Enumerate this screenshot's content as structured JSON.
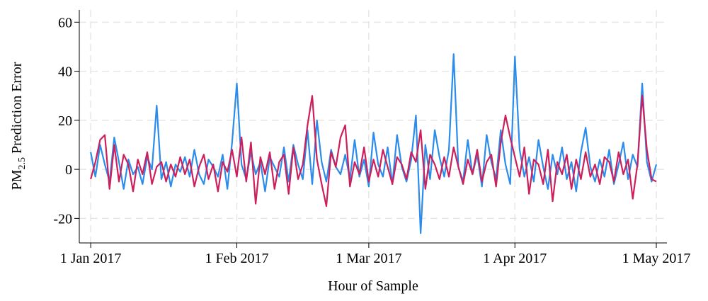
{
  "chart_data": {
    "type": "line",
    "x_label": "Hour of Sample",
    "y_label": [
      "PM",
      "2.5",
      " Prediction Error"
    ],
    "xlim": [
      -58,
      2934
    ],
    "ylim": [
      -30,
      65
    ],
    "xticks": [
      {
        "value": 0,
        "label": "1 Jan 2017"
      },
      {
        "value": 744,
        "label": "1 Feb 2017"
      },
      {
        "value": 1416,
        "label": "1 Mar 2017"
      },
      {
        "value": 2160,
        "label": "1 Apr 2017"
      },
      {
        "value": 2880,
        "label": "1 May 2017"
      }
    ],
    "yticks": [
      -20,
      0,
      20,
      40,
      60
    ],
    "grid": true,
    "x": [
      0,
      24,
      48,
      72,
      96,
      120,
      144,
      168,
      192,
      216,
      240,
      264,
      288,
      312,
      336,
      360,
      384,
      408,
      432,
      456,
      480,
      504,
      528,
      552,
      576,
      600,
      624,
      648,
      672,
      696,
      720,
      744,
      768,
      792,
      816,
      840,
      864,
      888,
      912,
      936,
      960,
      984,
      1008,
      1032,
      1056,
      1080,
      1104,
      1128,
      1152,
      1176,
      1200,
      1224,
      1248,
      1272,
      1296,
      1320,
      1344,
      1368,
      1392,
      1416,
      1440,
      1464,
      1488,
      1512,
      1536,
      1560,
      1584,
      1608,
      1632,
      1656,
      1680,
      1704,
      1728,
      1752,
      1776,
      1800,
      1824,
      1848,
      1872,
      1896,
      1920,
      1944,
      1968,
      1992,
      2016,
      2040,
      2064,
      2088,
      2112,
      2136,
      2160,
      2184,
      2208,
      2232,
      2256,
      2280,
      2304,
      2328,
      2352,
      2376,
      2400,
      2424,
      2448,
      2472,
      2496,
      2520,
      2544,
      2568,
      2592,
      2616,
      2640,
      2664,
      2688,
      2712,
      2736,
      2760,
      2784,
      2808,
      2832,
      2856,
      2880
    ],
    "series": [
      {
        "color": "#2b8ceb",
        "values": [
          7,
          -3,
          10,
          2,
          -5,
          13,
          3,
          -8,
          4,
          -2,
          1,
          -6,
          5,
          0,
          26,
          -4,
          3,
          -7,
          2,
          -1,
          5,
          -3,
          8,
          -2,
          -6,
          4,
          1,
          -3,
          6,
          -8,
          11,
          35,
          2,
          -4,
          7,
          -2,
          3,
          -9,
          5,
          1,
          -3,
          9,
          -5,
          10,
          2,
          -4,
          16,
          -6,
          20,
          3,
          -5,
          8,
          1,
          -2,
          6,
          -4,
          12,
          -3,
          4,
          -7,
          15,
          2,
          -3,
          9,
          -6,
          14,
          1,
          -5,
          4,
          22,
          -26,
          10,
          -4,
          16,
          5,
          -3,
          8,
          47,
          1,
          -5,
          12,
          -2,
          6,
          -7,
          14,
          3,
          -4,
          16,
          2,
          -6,
          46,
          8,
          -3,
          5,
          -5,
          12,
          1,
          -8,
          6,
          -2,
          9,
          -4,
          3,
          -9,
          7,
          17,
          1,
          -5,
          4,
          -3,
          8,
          -6,
          2,
          11,
          -4,
          6,
          1,
          35,
          3,
          -5,
          2
        ]
      },
      {
        "color": "#cc1f5c",
        "values": [
          -4,
          3,
          12,
          14,
          -8,
          10,
          -5,
          6,
          2,
          -9,
          4,
          -2,
          7,
          -6,
          1,
          3,
          -5,
          2,
          -3,
          5,
          -2,
          4,
          -7,
          1,
          6,
          -4,
          2,
          -9,
          3,
          -1,
          8,
          -3,
          13,
          -5,
          11,
          -14,
          5,
          -2,
          7,
          -8,
          3,
          6,
          -10,
          9,
          -4,
          2,
          18,
          30,
          4,
          -6,
          -15,
          7,
          1,
          13,
          18,
          -7,
          3,
          -2,
          9,
          -5,
          4,
          -3,
          8,
          1,
          -6,
          5,
          2,
          -4,
          7,
          3,
          16,
          -8,
          6,
          2,
          -4,
          5,
          -3,
          9,
          1,
          -6,
          4,
          -2,
          8,
          -5,
          3,
          6,
          -7,
          11,
          22,
          13,
          5,
          -3,
          9,
          -10,
          4,
          2,
          -6,
          8,
          -13,
          3,
          -2,
          6,
          -8,
          4,
          -4,
          7,
          -3,
          2,
          -6,
          5,
          3,
          -5,
          7,
          -2,
          4,
          -12,
          2,
          30,
          8,
          -4,
          -5
        ]
      }
    ]
  }
}
